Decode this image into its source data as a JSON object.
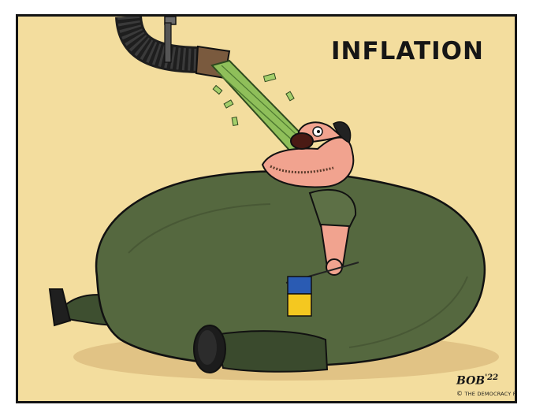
{
  "cartoon": {
    "title": "INFLATION",
    "signature": "BOB",
    "signature_year": "'22",
    "copyright_symbol": "©",
    "credit": "THE DEMOCRACY FUND"
  },
  "colors": {
    "background": "#f3dd9e",
    "body_green": "#55683f",
    "money_green": "#8fbf5a",
    "skin": "#f1a38f",
    "flag_blue": "#2a5bb3",
    "flag_yellow": "#f4c820"
  }
}
